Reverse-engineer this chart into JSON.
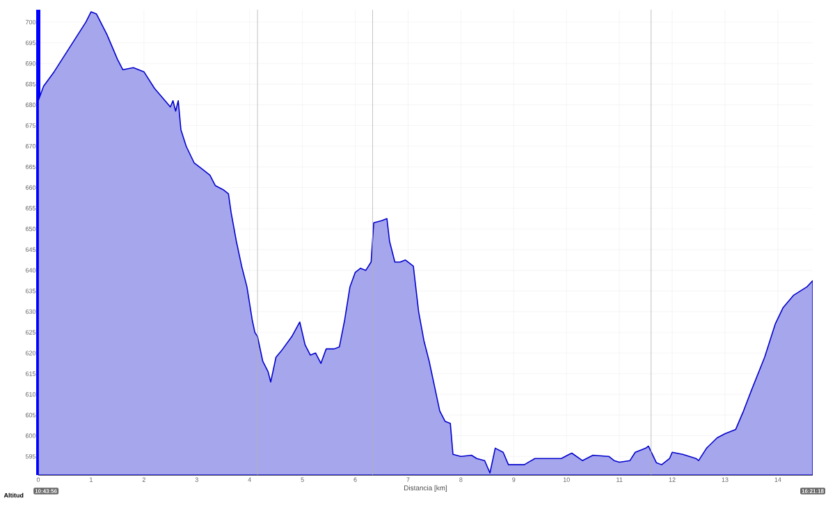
{
  "chart_data": {
    "type": "area",
    "xlabel": "Distancia [km]",
    "ylabel": "Altitud",
    "x": [
      0,
      0.1,
      0.3,
      0.5,
      0.7,
      0.9,
      1.0,
      1.1,
      1.3,
      1.5,
      1.6,
      1.8,
      2.0,
      2.2,
      2.4,
      2.5,
      2.55,
      2.6,
      2.65,
      2.7,
      2.8,
      2.95,
      3.1,
      3.25,
      3.35,
      3.5,
      3.6,
      3.65,
      3.75,
      3.85,
      3.95,
      4.05,
      4.1,
      4.15,
      4.25,
      4.35,
      4.4,
      4.5,
      4.6,
      4.8,
      4.95,
      5.05,
      5.15,
      5.25,
      5.35,
      5.45,
      5.6,
      5.7,
      5.8,
      5.9,
      6.0,
      6.1,
      6.2,
      6.3,
      6.35,
      6.5,
      6.6,
      6.65,
      6.75,
      6.85,
      6.95,
      7.1,
      7.2,
      7.3,
      7.4,
      7.5,
      7.6,
      7.7,
      7.8,
      7.85,
      8.0,
      8.2,
      8.3,
      8.45,
      8.55,
      8.65,
      8.8,
      8.9,
      9.0,
      9.2,
      9.4,
      9.7,
      9.9,
      10.05,
      10.1,
      10.3,
      10.5,
      10.8,
      10.9,
      11.0,
      11.2,
      11.3,
      11.5,
      11.55,
      11.7,
      11.8,
      11.95,
      12.0,
      12.2,
      12.45,
      12.5,
      12.65,
      12.85,
      13.0,
      13.2,
      13.35,
      13.5,
      13.75,
      13.95,
      14.1,
      14.3,
      14.55,
      14.66
    ],
    "series": [
      {
        "color": "#0000cc",
        "values": [
          681,
          684.5,
          688,
          692,
          696,
          700,
          702.5,
          702,
          697,
          691,
          688.5,
          689,
          688,
          684,
          681,
          679.5,
          681,
          678.5,
          681,
          674,
          670,
          666,
          664.5,
          663,
          660.5,
          659.5,
          658.5,
          654,
          647,
          641,
          636,
          628,
          625,
          624,
          618,
          615.5,
          613,
          619,
          620.5,
          624,
          627.5,
          622,
          619.5,
          620,
          617.5,
          621,
          621,
          621.5,
          628,
          636,
          639.5,
          640.5,
          640,
          642,
          651.5,
          652,
          652.5,
          647,
          642,
          642,
          642.5,
          641,
          630,
          623,
          618,
          612,
          606,
          603.5,
          603,
          595.5,
          595,
          595.3,
          594.5,
          594,
          591,
          597,
          596,
          593,
          593,
          593,
          594.5,
          594.5,
          594.5,
          595.5,
          595.8,
          594,
          595.3,
          595,
          594,
          593.6,
          594,
          596,
          597,
          597.5,
          593.5,
          593,
          594.5,
          596,
          595.5,
          594.5,
          594,
          597,
          599.5,
          600.5,
          601.5,
          606,
          611,
          619,
          627,
          631,
          634,
          636,
          637.5
        ]
      }
    ],
    "xlim": [
      0,
      14.66
    ],
    "ylim": [
      590.5,
      703
    ],
    "xticks": [
      0,
      1,
      2,
      3,
      4,
      5,
      6,
      7,
      8,
      9,
      10,
      11,
      12,
      13,
      14
    ],
    "yticks": [
      595,
      600,
      605,
      610,
      615,
      620,
      625,
      630,
      635,
      640,
      645,
      650,
      655,
      660,
      665,
      670,
      675,
      680,
      685,
      690,
      695,
      700
    ],
    "grid": true,
    "ref_lines": [
      {
        "axis": "x",
        "value": 4.15,
        "color": "#b0b0b0"
      },
      {
        "axis": "x",
        "value": 6.33,
        "color": "#b0b0b0"
      },
      {
        "axis": "x",
        "value": 11.6,
        "color": "#b0b0b0"
      }
    ],
    "annotations": [
      "10:43:56",
      "16:21:18"
    ]
  }
}
